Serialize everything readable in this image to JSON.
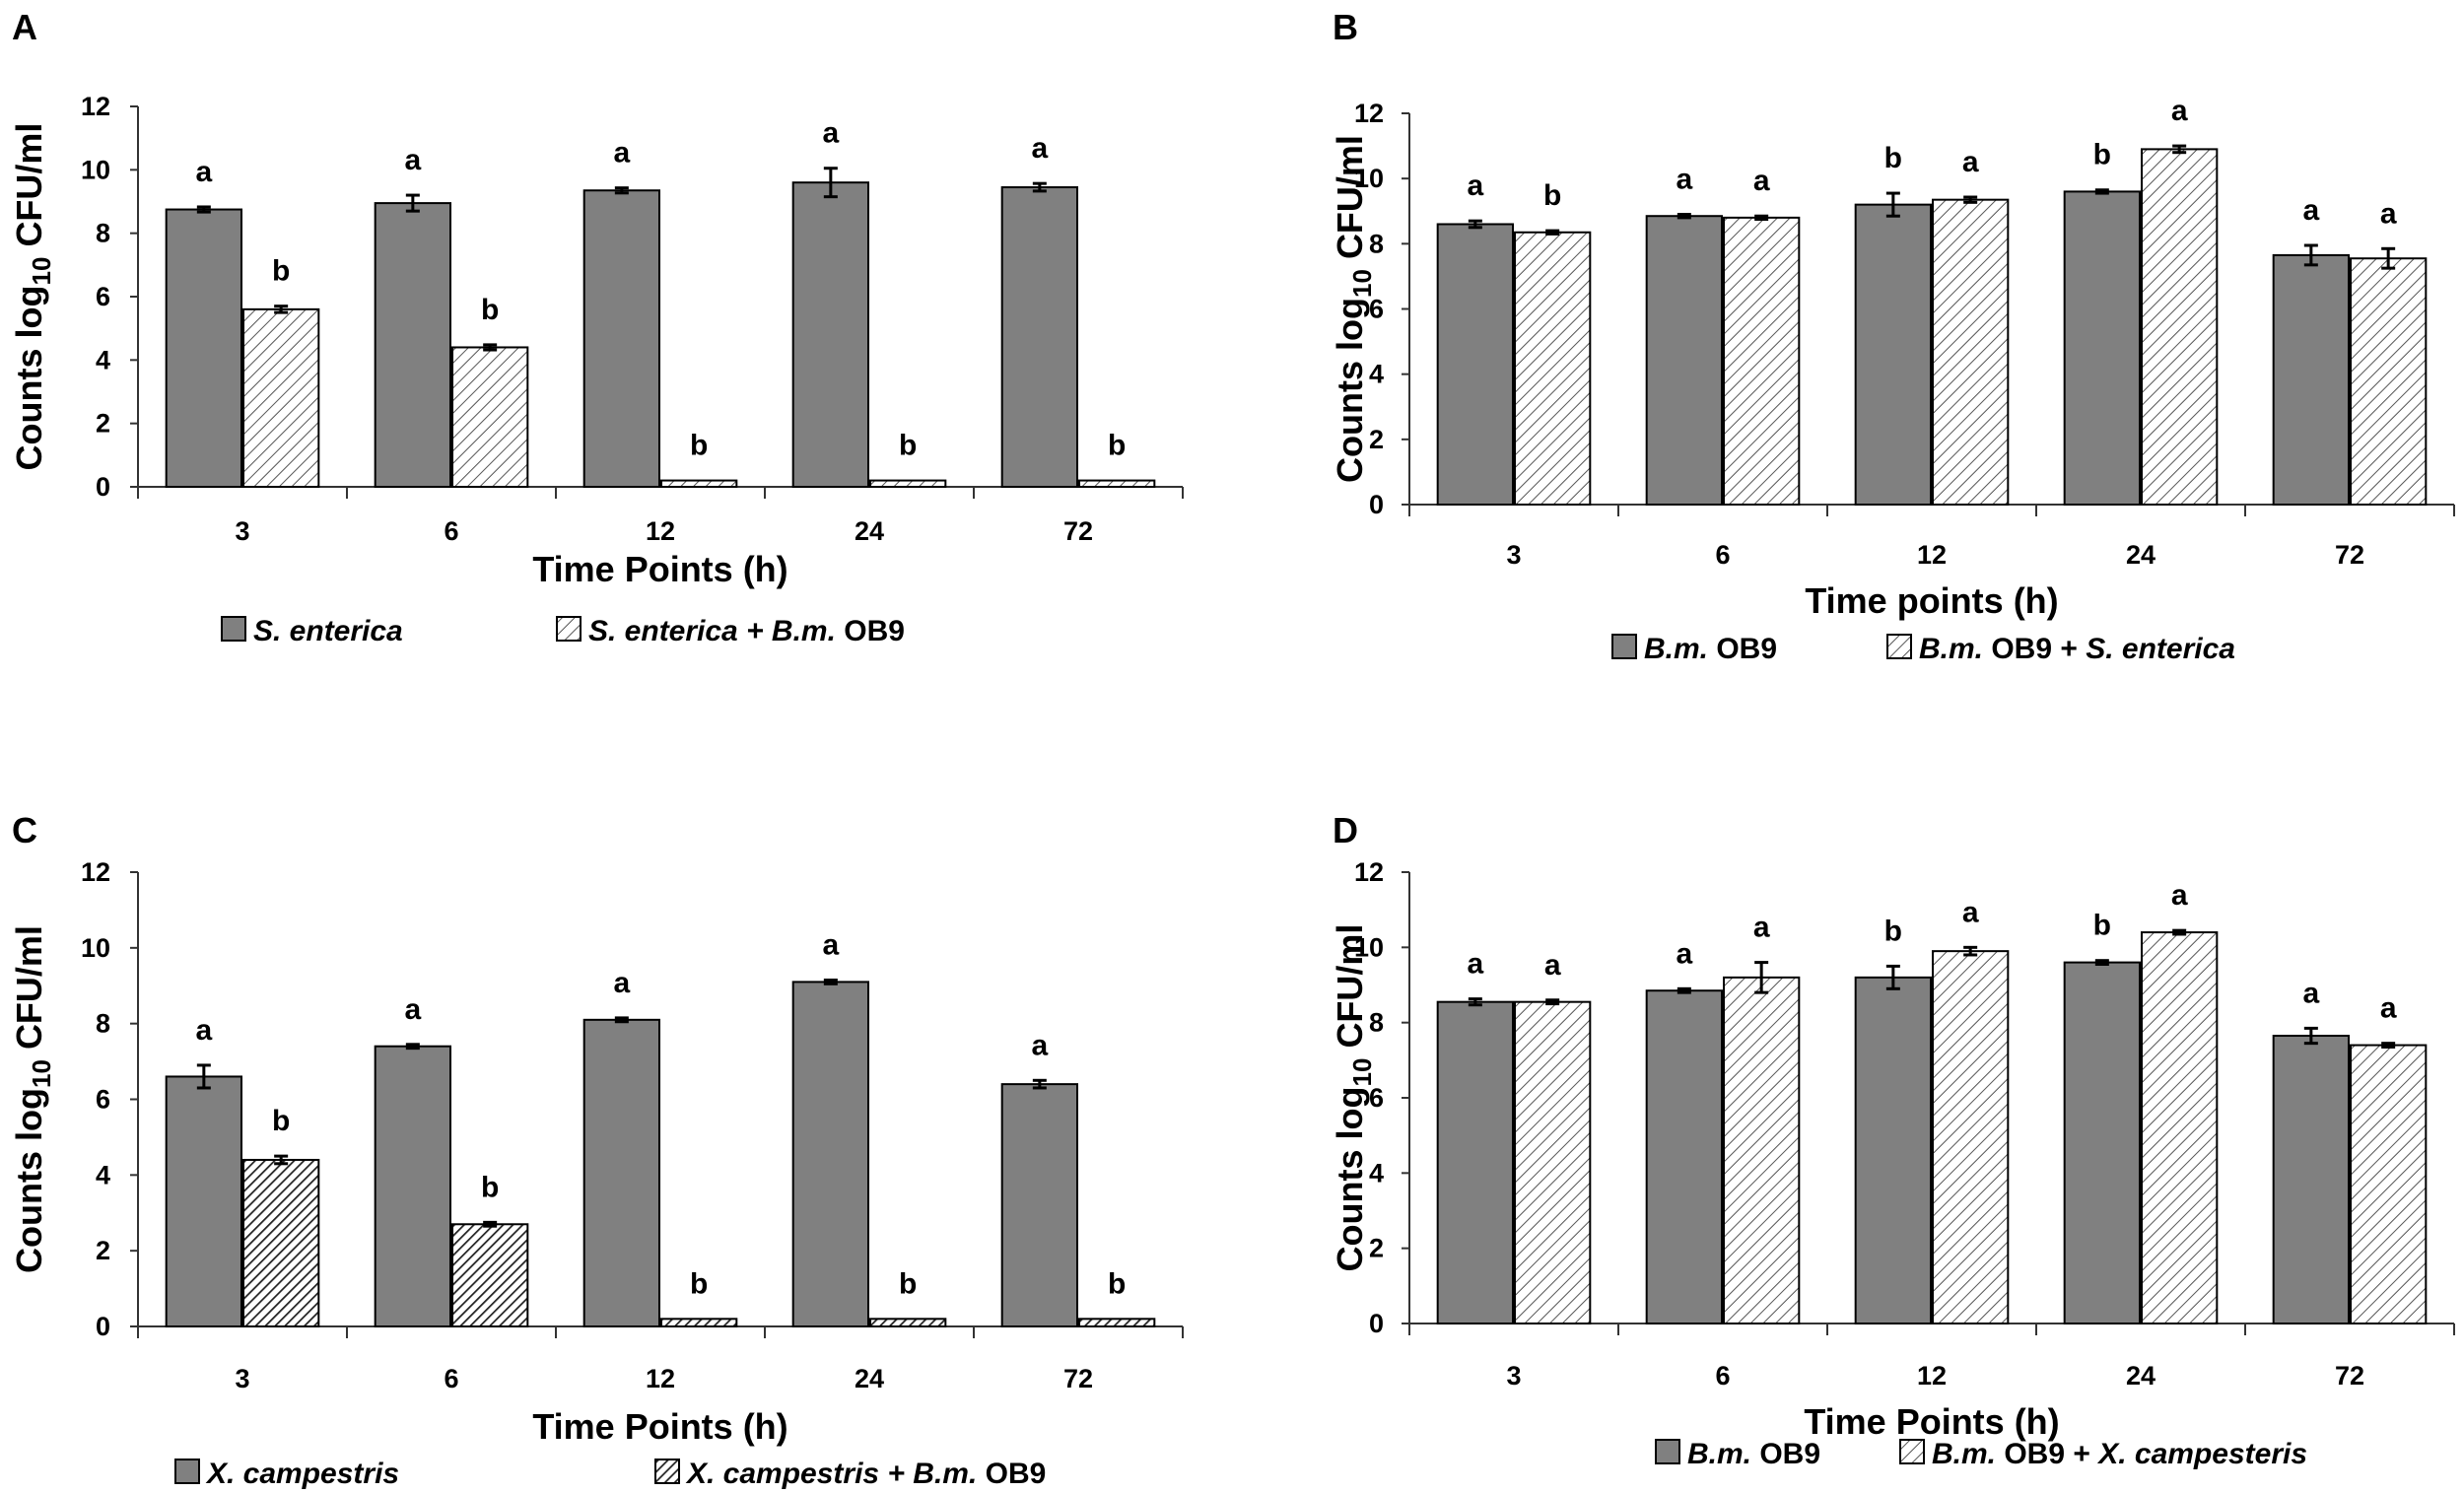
{
  "chart_data": [
    {
      "panel": "A",
      "type": "bar",
      "categories": [
        "3",
        "6",
        "12",
        "24",
        "72"
      ],
      "ylabel": {
        "main": "Counts log",
        "sub": "10",
        "unit": " CFU/ml"
      },
      "xlabel": "Time Points (h)",
      "ylim": [
        0,
        12
      ],
      "yticks": [
        "0",
        "2",
        "4",
        "6",
        "8",
        "10",
        "12"
      ],
      "series": [
        {
          "name": "S. enterica",
          "legend_parts": [
            {
              "t": "S. enterica",
              "i": true
            }
          ],
          "pattern": "solid",
          "values": [
            8.75,
            8.95,
            9.35,
            9.6,
            9.45
          ],
          "errors": [
            0.08,
            0.25,
            0.08,
            0.45,
            0.12
          ],
          "sig": [
            "a",
            "a",
            "a",
            "a",
            "a"
          ]
        },
        {
          "name": "S. enterica + B.m. OB9",
          "legend_parts": [
            {
              "t": "S. enterica + B.m.",
              "i": true
            },
            {
              "t": " OB9",
              "i": false
            }
          ],
          "pattern": "hatch-light",
          "values": [
            5.6,
            4.4,
            0.2,
            0.2,
            0.2
          ],
          "errors": [
            0.1,
            0.08,
            0,
            0,
            0
          ],
          "sig": [
            "b",
            "b",
            "b",
            "b",
            "b"
          ]
        }
      ]
    },
    {
      "panel": "B",
      "type": "bar",
      "categories": [
        "3",
        "6",
        "12",
        "24",
        "72"
      ],
      "ylabel": {
        "main": "Counts log",
        "sub": "10",
        "unit": " CFU/ml"
      },
      "xlabel": "Time points (h)",
      "ylim": [
        0,
        12
      ],
      "yticks": [
        "0",
        "2",
        "4",
        "6",
        "8",
        "10",
        "12"
      ],
      "series": [
        {
          "name": "B.m. OB9",
          "legend_parts": [
            {
              "t": "B.m.",
              "i": true
            },
            {
              "t": " OB9",
              "i": false
            }
          ],
          "pattern": "solid",
          "values": [
            8.6,
            8.85,
            9.2,
            9.6,
            7.65
          ],
          "errors": [
            0.1,
            0.05,
            0.35,
            0.05,
            0.3
          ],
          "sig": [
            "a",
            "a",
            "b",
            "b",
            "a"
          ]
        },
        {
          "name": "B.m. OB9 + S. enterica",
          "legend_parts": [
            {
              "t": "B.m.",
              "i": true
            },
            {
              "t": " OB9 + ",
              "i": false
            },
            {
              "t": "S. enterica",
              "i": true
            }
          ],
          "pattern": "hatch-light",
          "values": [
            8.35,
            8.8,
            9.35,
            10.9,
            7.55
          ],
          "errors": [
            0.05,
            0.05,
            0.08,
            0.1,
            0.3
          ],
          "sig": [
            "b",
            "a",
            "a",
            "a",
            "a"
          ]
        }
      ]
    },
    {
      "panel": "C",
      "type": "bar",
      "categories": [
        "3",
        "6",
        "12",
        "24",
        "72"
      ],
      "ylabel": {
        "main": "Counts log",
        "sub": "10",
        "unit": " CFU/ml"
      },
      "xlabel": "Time Points (h)",
      "ylim": [
        0,
        12
      ],
      "yticks": [
        "0",
        "2",
        "4",
        "6",
        "8",
        "10",
        "12"
      ],
      "series": [
        {
          "name": "X. campestris",
          "legend_parts": [
            {
              "t": "X. campestris",
              "i": true
            }
          ],
          "pattern": "solid",
          "values": [
            6.6,
            7.4,
            8.1,
            9.1,
            6.4
          ],
          "errors": [
            0.3,
            0.05,
            0.05,
            0.05,
            0.1
          ],
          "sig": [
            "a",
            "a",
            "a",
            "a",
            "a"
          ]
        },
        {
          "name": "X. campestris + B.m. OB9",
          "legend_parts": [
            {
              "t": "X. campestris + B.m.",
              "i": true
            },
            {
              "t": " OB9",
              "i": false
            }
          ],
          "pattern": "hatch-dense",
          "values": [
            4.4,
            2.7,
            0.2,
            0.2,
            0.2
          ],
          "errors": [
            0.1,
            0.05,
            0,
            0,
            0
          ],
          "sig": [
            "b",
            "b",
            "b",
            "b",
            "b"
          ]
        }
      ]
    },
    {
      "panel": "D",
      "type": "bar",
      "categories": [
        "3",
        "6",
        "12",
        "24",
        "72"
      ],
      "ylabel": {
        "main": "Counts log",
        "sub": "10",
        "unit": " CFU/ml"
      },
      "xlabel": "Time Points (h)",
      "ylim": [
        0,
        12
      ],
      "yticks": [
        "0",
        "2",
        "4",
        "6",
        "8",
        "10",
        "12"
      ],
      "series": [
        {
          "name": "B.m. OB9",
          "legend_parts": [
            {
              "t": "B.m.",
              "i": true
            },
            {
              "t": " OB9",
              "i": false
            }
          ],
          "pattern": "solid",
          "values": [
            8.55,
            8.85,
            9.2,
            9.6,
            7.65
          ],
          "errors": [
            0.08,
            0.05,
            0.3,
            0.05,
            0.2
          ],
          "sig": [
            "a",
            "a",
            "b",
            "b",
            "a"
          ]
        },
        {
          "name": "B.m. OB9 + X. campesteris",
          "legend_parts": [
            {
              "t": "B.m.",
              "i": true
            },
            {
              "t": " OB9 + ",
              "i": false
            },
            {
              "t": "X. campesteris",
              "i": true
            }
          ],
          "pattern": "hatch-light",
          "values": [
            8.55,
            9.2,
            9.9,
            10.4,
            7.4
          ],
          "errors": [
            0.05,
            0.4,
            0.1,
            0.05,
            0.05
          ],
          "sig": [
            "a",
            "a",
            "a",
            "a",
            "a"
          ]
        }
      ]
    }
  ]
}
